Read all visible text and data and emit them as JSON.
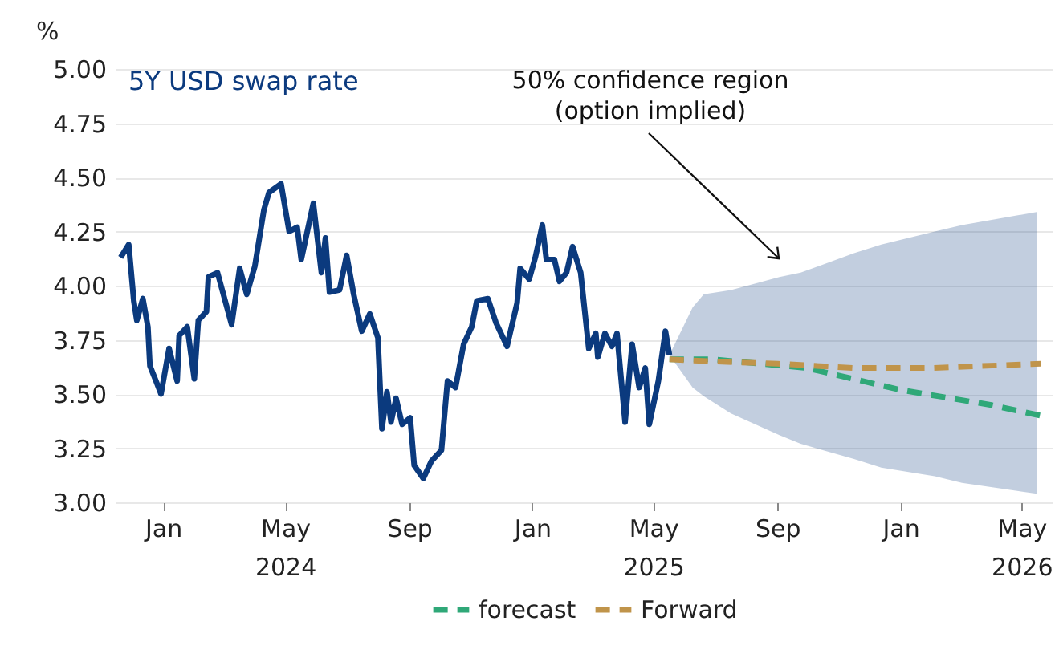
{
  "chart_data": {
    "type": "line",
    "ylabel": "%",
    "xlim": [
      "2023-11-15",
      "2026-05-31"
    ],
    "ylim": [
      3.0,
      5.0
    ],
    "yticks": [
      {
        "value": 3,
        "label": "3.00"
      },
      {
        "value": 3.25,
        "label": "3.25"
      },
      {
        "value": 3.5,
        "label": "3.50"
      },
      {
        "value": 3.75,
        "label": "3.75"
      },
      {
        "value": 4,
        "label": "4.00"
      },
      {
        "value": 4.25,
        "label": "4.25"
      },
      {
        "value": 4.5,
        "label": "4.50"
      },
      {
        "value": 4.75,
        "label": "4.75"
      },
      {
        "value": 5,
        "label": "5.00"
      }
    ],
    "xticks": [
      {
        "value": "2024-01-01",
        "label": "Jan"
      },
      {
        "value": "2024-05-01",
        "label": "May\n2024"
      },
      {
        "value": "2024-09-01",
        "label": "Sep"
      },
      {
        "value": "2025-01-01",
        "label": "Jan"
      },
      {
        "value": "2025-05-01",
        "label": "May\n2025"
      },
      {
        "value": "2025-09-01",
        "label": "Sep"
      },
      {
        "value": "2026-01-01",
        "label": "Jan"
      },
      {
        "value": "2026-05-01",
        "label": "May\n2026"
      }
    ],
    "grid": "y",
    "legend": "bottom",
    "annotations": [
      "50% confidence region\n(option implied)"
    ],
    "series": [
      {
        "name": "5Y USD swap rate",
        "color": "#0b3a7e",
        "line_style": "solid",
        "x": [
          "2023-11-20",
          "2023-11-28",
          "2023-12-03",
          "2023-12-06",
          "2023-12-12",
          "2023-12-17",
          "2023-12-19",
          "2023-12-25",
          "2023-12-30",
          "2024-01-07",
          "2024-01-15",
          "2024-01-17",
          "2024-01-25",
          "2024-02-01",
          "2024-02-05",
          "2024-02-13",
          "2024-02-15",
          "2024-02-24",
          "2024-03-09",
          "2024-03-17",
          "2024-03-24",
          "2024-04-01",
          "2024-04-10",
          "2024-04-15",
          "2024-04-27",
          "2024-05-05",
          "2024-05-13",
          "2024-05-17",
          "2024-05-29",
          "2024-06-06",
          "2024-06-10",
          "2024-06-14",
          "2024-06-24",
          "2024-07-01",
          "2024-07-08",
          "2024-07-16",
          "2024-07-24",
          "2024-08-01",
          "2024-08-05",
          "2024-08-10",
          "2024-08-14",
          "2024-08-19",
          "2024-08-25",
          "2024-09-02",
          "2024-09-06",
          "2024-09-15",
          "2024-09-23",
          "2024-10-03",
          "2024-10-09",
          "2024-10-17",
          "2024-10-25",
          "2024-11-02",
          "2024-11-07",
          "2024-11-18",
          "2024-11-26",
          "2024-12-07",
          "2024-12-17",
          "2024-12-20",
          "2024-12-29",
          "2025-01-04",
          "2025-01-11",
          "2025-01-15",
          "2025-01-23",
          "2025-01-28",
          "2025-02-04",
          "2025-02-10",
          "2025-02-18",
          "2025-02-26",
          "2025-03-05",
          "2025-03-07",
          "2025-03-14",
          "2025-03-21",
          "2025-03-26",
          "2025-04-03",
          "2025-04-10",
          "2025-04-17",
          "2025-04-23",
          "2025-04-27",
          "2025-05-06",
          "2025-05-13",
          "2025-05-17",
          "2025-06-09",
          "2025-06-20",
          "2025-07-17",
          "2025-09-03",
          "2025-09-24",
          "2025-11-16",
          "2025-12-13",
          "2026-02-04",
          "2026-03-03",
          "2026-05-16"
        ],
        "values": [
          4.13,
          4.19,
          3.93,
          3.84,
          3.94,
          3.81,
          3.63,
          3.56,
          3.5,
          3.71,
          3.56,
          3.77,
          3.81,
          3.57,
          3.84,
          3.88,
          4.04,
          4.06,
          3.82,
          4.08,
          3.96,
          4.09,
          4.35,
          4.43,
          4.47,
          4.25,
          4.27,
          4.12,
          4.38,
          4.06,
          4.22,
          3.97,
          3.98,
          4.14,
          3.96,
          3.79,
          3.87,
          3.76,
          3.34,
          3.51,
          3.37,
          3.48,
          3.36,
          3.39,
          3.17,
          3.11,
          3.19,
          3.24,
          3.56,
          3.53,
          3.73,
          3.81,
          3.93,
          3.94,
          3.83,
          3.72,
          3.92,
          4.08,
          4.03,
          4.13,
          4.28,
          4.12,
          4.12,
          4.02,
          4.06,
          4.18,
          4.06,
          3.71,
          3.78,
          3.67,
          3.78,
          3.72,
          3.78,
          3.37,
          3.73,
          3.53,
          3.62,
          3.36,
          3.56,
          3.79,
          3.68,
          null,
          null,
          null,
          null,
          null,
          null,
          null,
          null,
          null,
          null
        ],
        "lower": [
          null,
          null,
          null,
          null,
          null,
          null,
          null,
          null,
          null,
          null,
          null,
          null,
          null,
          null,
          null,
          null,
          null,
          null,
          null,
          null,
          null,
          null,
          null,
          null,
          null,
          null,
          null,
          null,
          null,
          null,
          null,
          null,
          null,
          null,
          null,
          null,
          null,
          null,
          null,
          null,
          null,
          null,
          null,
          null,
          null,
          null,
          null,
          null,
          null,
          null,
          null,
          null,
          null,
          null,
          null,
          null,
          null,
          null,
          null,
          null,
          null,
          null,
          null,
          null,
          null,
          null,
          null,
          null,
          null,
          null,
          null,
          null,
          null,
          null,
          null,
          null,
          null,
          null,
          null,
          null,
          3.68,
          3.53,
          3.49,
          3.41,
          3.31,
          3.27,
          3.2,
          3.16,
          3.12,
          3.09,
          3.04
        ],
        "upper": [
          null,
          null,
          null,
          null,
          null,
          null,
          null,
          null,
          null,
          null,
          null,
          null,
          null,
          null,
          null,
          null,
          null,
          null,
          null,
          null,
          null,
          null,
          null,
          null,
          null,
          null,
          null,
          null,
          null,
          null,
          null,
          null,
          null,
          null,
          null,
          null,
          null,
          null,
          null,
          null,
          null,
          null,
          null,
          null,
          null,
          null,
          null,
          null,
          null,
          null,
          null,
          null,
          null,
          null,
          null,
          null,
          null,
          null,
          null,
          null,
          null,
          null,
          null,
          null,
          null,
          null,
          null,
          null,
          null,
          null,
          null,
          null,
          null,
          null,
          null,
          null,
          null,
          null,
          null,
          null,
          3.68,
          3.9,
          3.96,
          3.98,
          4.04,
          4.06,
          4.15,
          4.19,
          4.25,
          4.28,
          4.34
        ]
      },
      {
        "name": "forecast",
        "color": "#2fa878",
        "line_style": "dashed",
        "x": [
          "2025-05-17",
          "2025-06-30",
          "2025-09-30",
          "2025-12-31",
          "2026-03-31",
          "2026-05-20"
        ],
        "values": [
          3.66,
          3.66,
          3.62,
          3.52,
          3.45,
          3.4
        ]
      },
      {
        "name": "Forward",
        "color": "#c0944a",
        "line_style": "dashed",
        "x": [
          "2025-05-17",
          "2025-07-01",
          "2025-09-01",
          "2025-11-15",
          "2026-02-01",
          "2026-05-20"
        ],
        "values": [
          3.66,
          3.65,
          3.64,
          3.62,
          3.62,
          3.64
        ]
      }
    ]
  }
}
